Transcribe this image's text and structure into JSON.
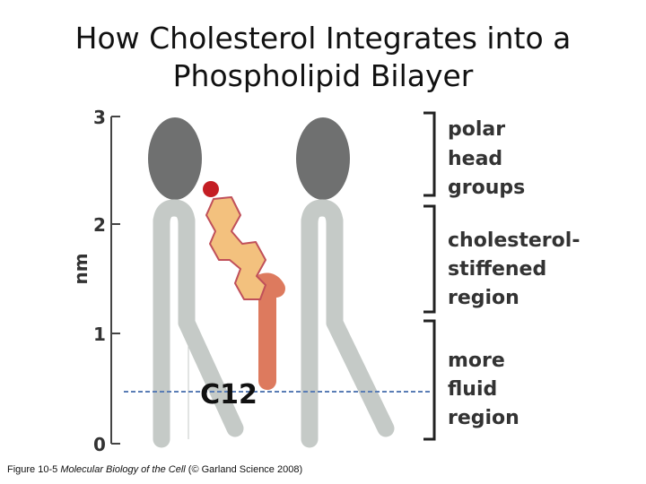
{
  "title": {
    "line1": "How Cholesterol Integrates into a",
    "line2": "Phospholipid Bilayer"
  },
  "axis": {
    "unit": "nm",
    "ticks": [
      "3",
      "2",
      "1",
      "0"
    ]
  },
  "regions": [
    {
      "lines": [
        "polar",
        "head",
        "groups"
      ]
    },
    {
      "lines": [
        "cholesterol-",
        "stiffened",
        "region"
      ]
    },
    {
      "lines": [
        "more",
        "fluid",
        "region"
      ]
    }
  ],
  "marker_label": "C12",
  "caption": {
    "prefix": "Figure 10-5 ",
    "book": "Molecular Biology of the Cell",
    "suffix": " (© Garland Science 2008)"
  },
  "colors": {
    "head": "#6f7070",
    "tail": "#c5cac7",
    "cholesterol_ring": "#f3c17e",
    "cholesterol_ring_stroke": "#c0505a",
    "hydroxyl": "#c41e24",
    "cholesterol_tail": "#dd7a5e",
    "dashed_line": "#5a7db5"
  }
}
